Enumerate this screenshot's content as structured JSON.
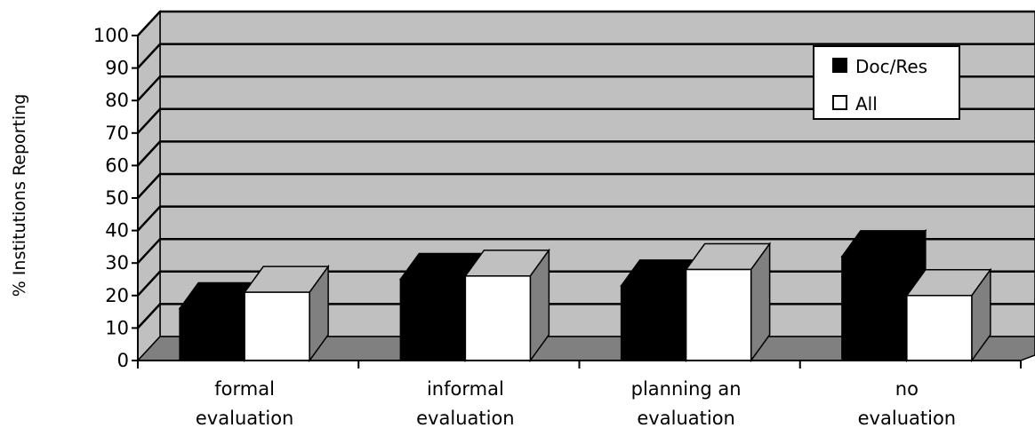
{
  "chart_data": {
    "type": "bar",
    "ylabel": "% Institutions Reporting",
    "ylim": [
      0,
      100
    ],
    "yticks": [
      "0",
      "10",
      "20",
      "30",
      "40",
      "50",
      "60",
      "70",
      "80",
      "90",
      "100"
    ],
    "categories": [
      [
        "formal",
        "evaluation"
      ],
      [
        "informal",
        "evaluation"
      ],
      [
        "planning an",
        "evaluation"
      ],
      [
        "no",
        "evaluation"
      ]
    ],
    "series": [
      {
        "name": "Doc/Res",
        "values": [
          16,
          25,
          23,
          32
        ],
        "color": "#000000"
      },
      {
        "name": "All",
        "values": [
          21,
          26,
          28,
          20
        ],
        "color": "#ffffff"
      }
    ],
    "style": "3d-column",
    "grid": true,
    "legend_position": "top-right",
    "colors": {
      "wall": "#c0c0c0",
      "floor": "#808080",
      "side": "#808080",
      "bar_top_black": "#000000",
      "bar_top_white": "#c0c0c0"
    }
  }
}
